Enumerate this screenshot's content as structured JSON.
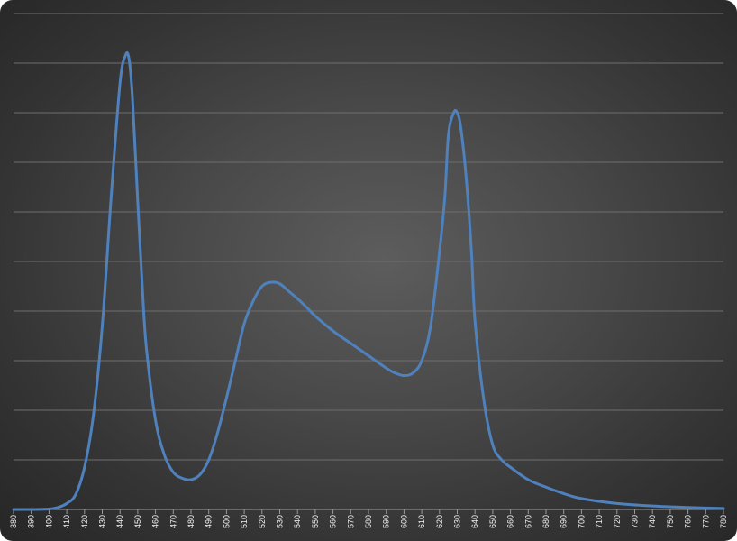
{
  "chart_data": {
    "type": "line",
    "title": "",
    "xlabel": "",
    "ylabel": "",
    "grid": true,
    "legend": "none",
    "xlim": [
      380,
      780
    ],
    "ylim": [
      0,
      1.0
    ],
    "series_color": "#4f81bd",
    "background_color": "#4a4a4a",
    "x_ticks": [
      "380",
      "390",
      "400",
      "410",
      "420",
      "430",
      "440",
      "450",
      "460",
      "470",
      "480",
      "490",
      "500",
      "510",
      "520",
      "530",
      "540",
      "550",
      "560",
      "570",
      "580",
      "590",
      "600",
      "610",
      "620",
      "630",
      "640",
      "650",
      "660",
      "670",
      "680",
      "690",
      "700",
      "710",
      "720",
      "730",
      "740",
      "750",
      "760",
      "770",
      "780"
    ],
    "series": [
      {
        "values_x": [
          380,
          390,
          400,
          405,
          410,
          415,
          420,
          425,
          430,
          435,
          440,
          443,
          445,
          447,
          450,
          453,
          455,
          460,
          465,
          470,
          475,
          480,
          485,
          490,
          495,
          500,
          505,
          510,
          515,
          520,
          525,
          530,
          535,
          540,
          545,
          550,
          560,
          570,
          580,
          590,
          595,
          600,
          605,
          610,
          615,
          620,
          623,
          625,
          628,
          630,
          632,
          635,
          638,
          640,
          645,
          650,
          655,
          660,
          670,
          680,
          690,
          700,
          720,
          740,
          760,
          780
        ],
        "values_y": [
          0.0,
          0.0,
          0.001,
          0.004,
          0.012,
          0.03,
          0.085,
          0.19,
          0.37,
          0.63,
          0.86,
          0.915,
          0.91,
          0.83,
          0.62,
          0.42,
          0.32,
          0.18,
          0.11,
          0.075,
          0.063,
          0.06,
          0.07,
          0.1,
          0.155,
          0.225,
          0.3,
          0.375,
          0.42,
          0.45,
          0.458,
          0.455,
          0.44,
          0.425,
          0.408,
          0.39,
          0.36,
          0.335,
          0.31,
          0.285,
          0.275,
          0.27,
          0.275,
          0.3,
          0.37,
          0.52,
          0.63,
          0.755,
          0.8,
          0.8,
          0.77,
          0.67,
          0.52,
          0.38,
          0.22,
          0.13,
          0.1,
          0.085,
          0.06,
          0.045,
          0.032,
          0.022,
          0.012,
          0.007,
          0.004,
          0.002
        ]
      }
    ]
  }
}
